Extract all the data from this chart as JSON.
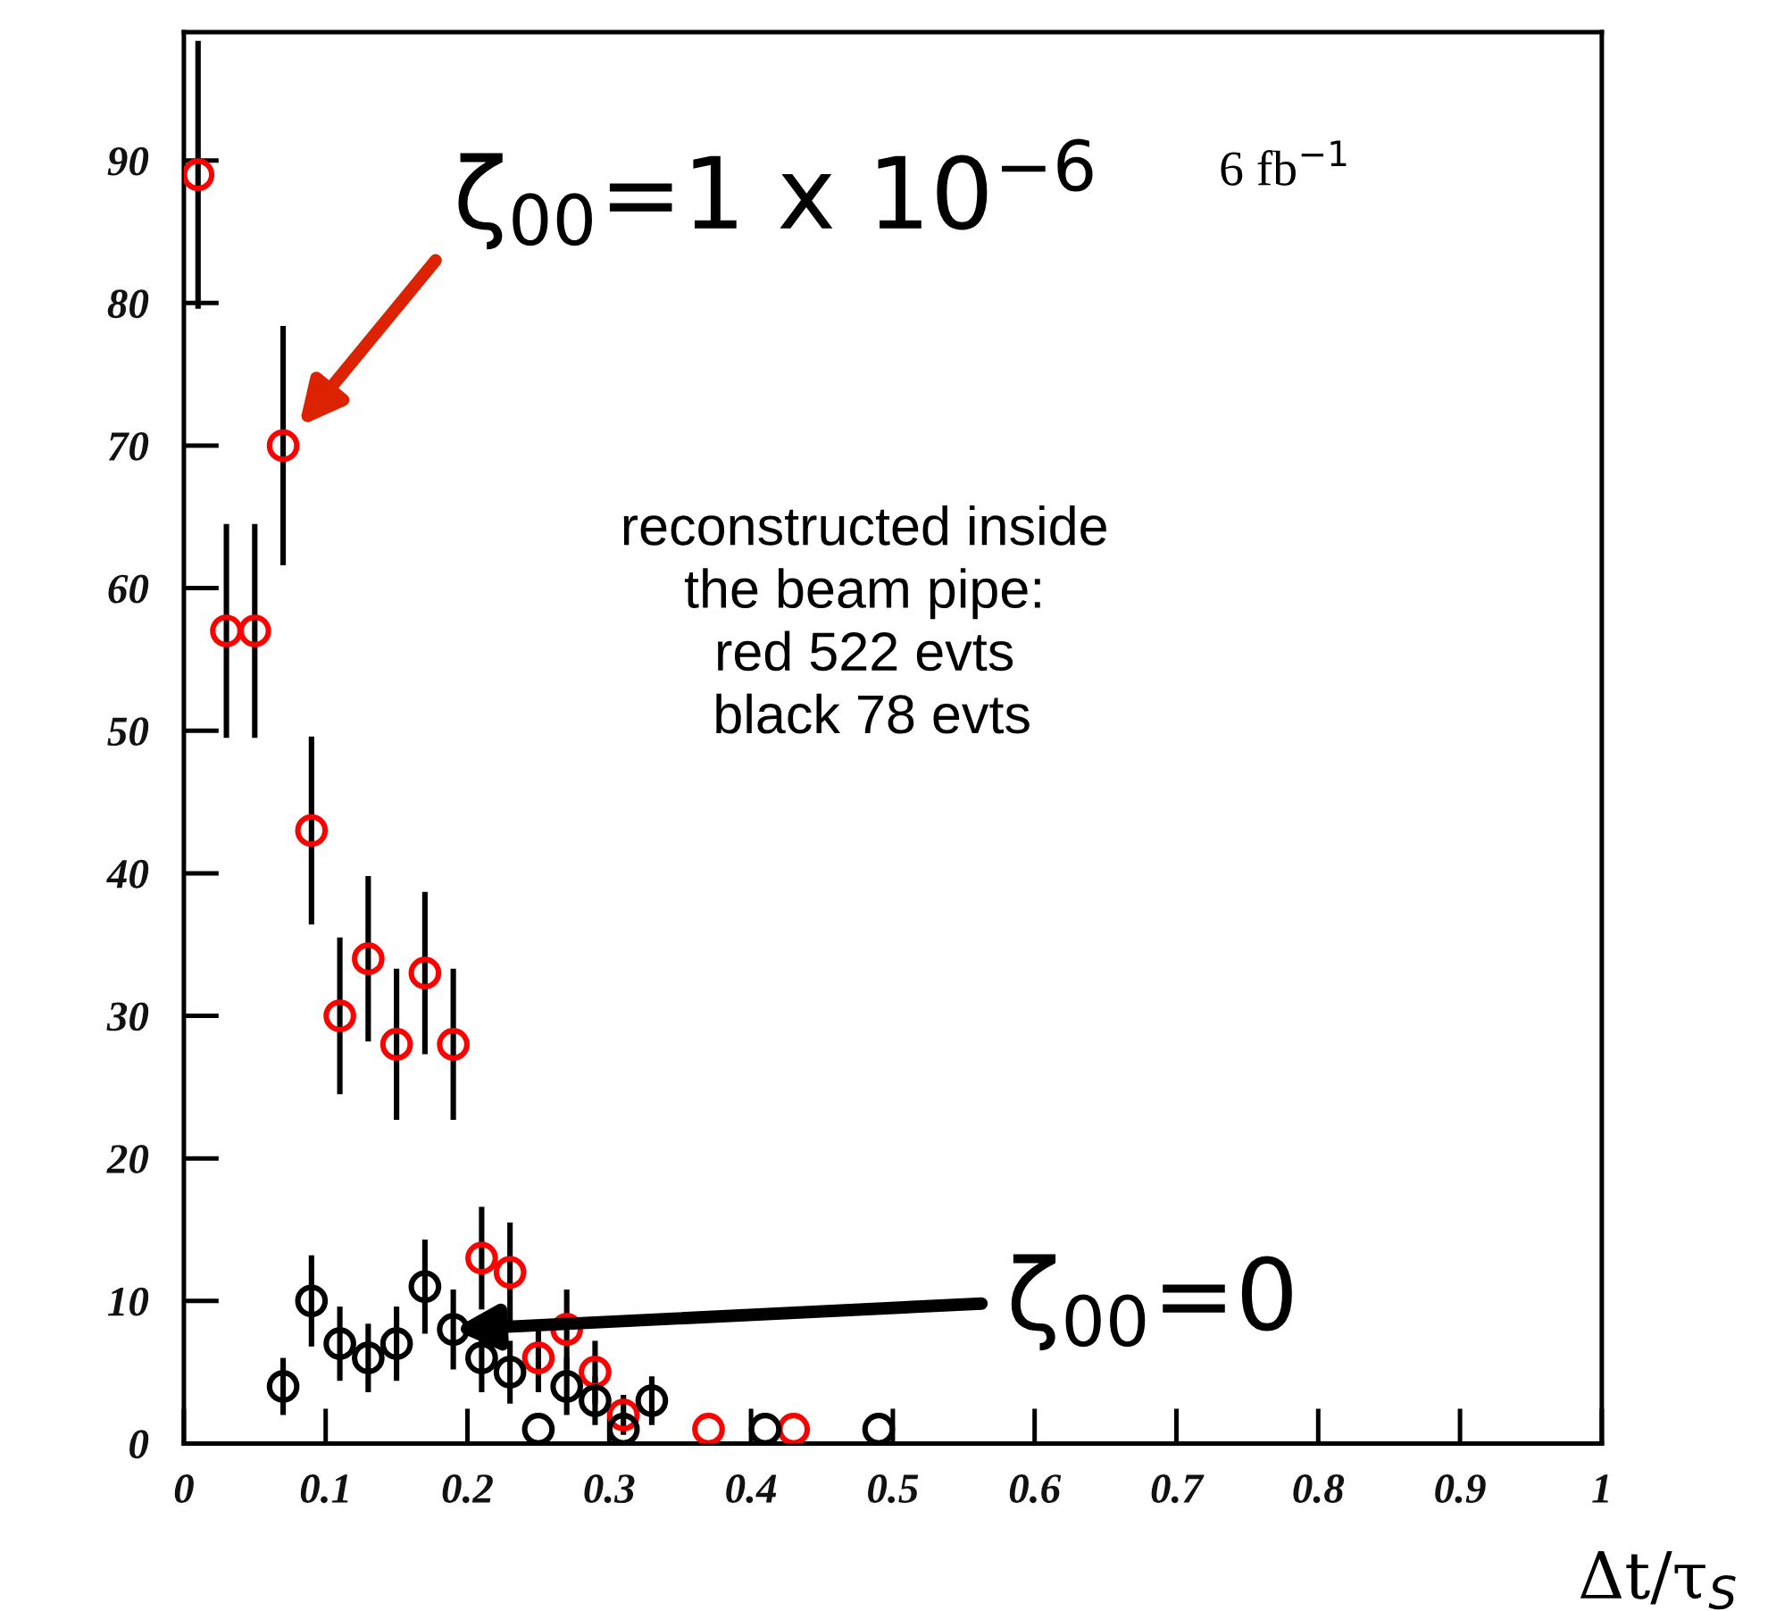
{
  "chart_data": {
    "type": "scatter",
    "xlabel": "Δt/τ$_{S}$",
    "xlim": [
      0,
      1
    ],
    "xticks": [
      0,
      0.1,
      0.2,
      0.3,
      0.4,
      0.5,
      0.6,
      0.7,
      0.8,
      0.9,
      1
    ],
    "ylim": [
      0,
      99
    ],
    "yticks": [
      0,
      10,
      20,
      30,
      40,
      50,
      60,
      70,
      80,
      90
    ],
    "marker": "circle",
    "series": [
      {
        "color": "#ff0000",
        "x": [
          0.01,
          0.03,
          0.05,
          0.07,
          0.09,
          0.11,
          0.13,
          0.15,
          0.17,
          0.19,
          0.21,
          0.23,
          0.25,
          0.27,
          0.29,
          0.31,
          0.37,
          0.43
        ],
        "values": [
          89,
          57,
          57,
          70,
          43,
          30,
          34,
          28,
          33,
          28,
          13,
          12,
          6,
          8,
          5,
          2,
          1,
          1
        ],
        "errors": [
          9.4,
          7.5,
          7.5,
          8.4,
          6.6,
          5.5,
          5.8,
          5.3,
          5.7,
          5.3,
          3.6,
          3.5,
          2.4,
          2.8,
          2.2,
          1.4,
          null,
          null
        ]
      },
      {
        "color": "#000000",
        "x": [
          0.07,
          0.09,
          0.11,
          0.13,
          0.15,
          0.17,
          0.19,
          0.21,
          0.23,
          0.25,
          0.27,
          0.29,
          0.31,
          0.33,
          0.41,
          0.49
        ],
        "values": [
          4,
          10,
          7,
          6,
          7,
          11,
          8,
          6,
          5,
          1,
          4,
          3,
          1,
          3,
          1,
          1
        ],
        "errors": [
          2,
          3.2,
          2.6,
          2.4,
          2.6,
          3.3,
          2.8,
          2.4,
          2.2,
          null,
          2,
          1.7,
          null,
          1.7,
          null,
          null
        ]
      }
    ],
    "annotations": [
      {
        "text": "ζ$_{00}$=1 x 10$^{−6}$",
        "x": 0.07,
        "y": 70
      },
      "6 fb$^{−1}$",
      "reconstructed inside\nthe beam pipe:\nred 522 evts\n black 78 evts",
      {
        "text": "ζ$_{00}$=0",
        "x": 0.19,
        "y": 8
      }
    ]
  }
}
